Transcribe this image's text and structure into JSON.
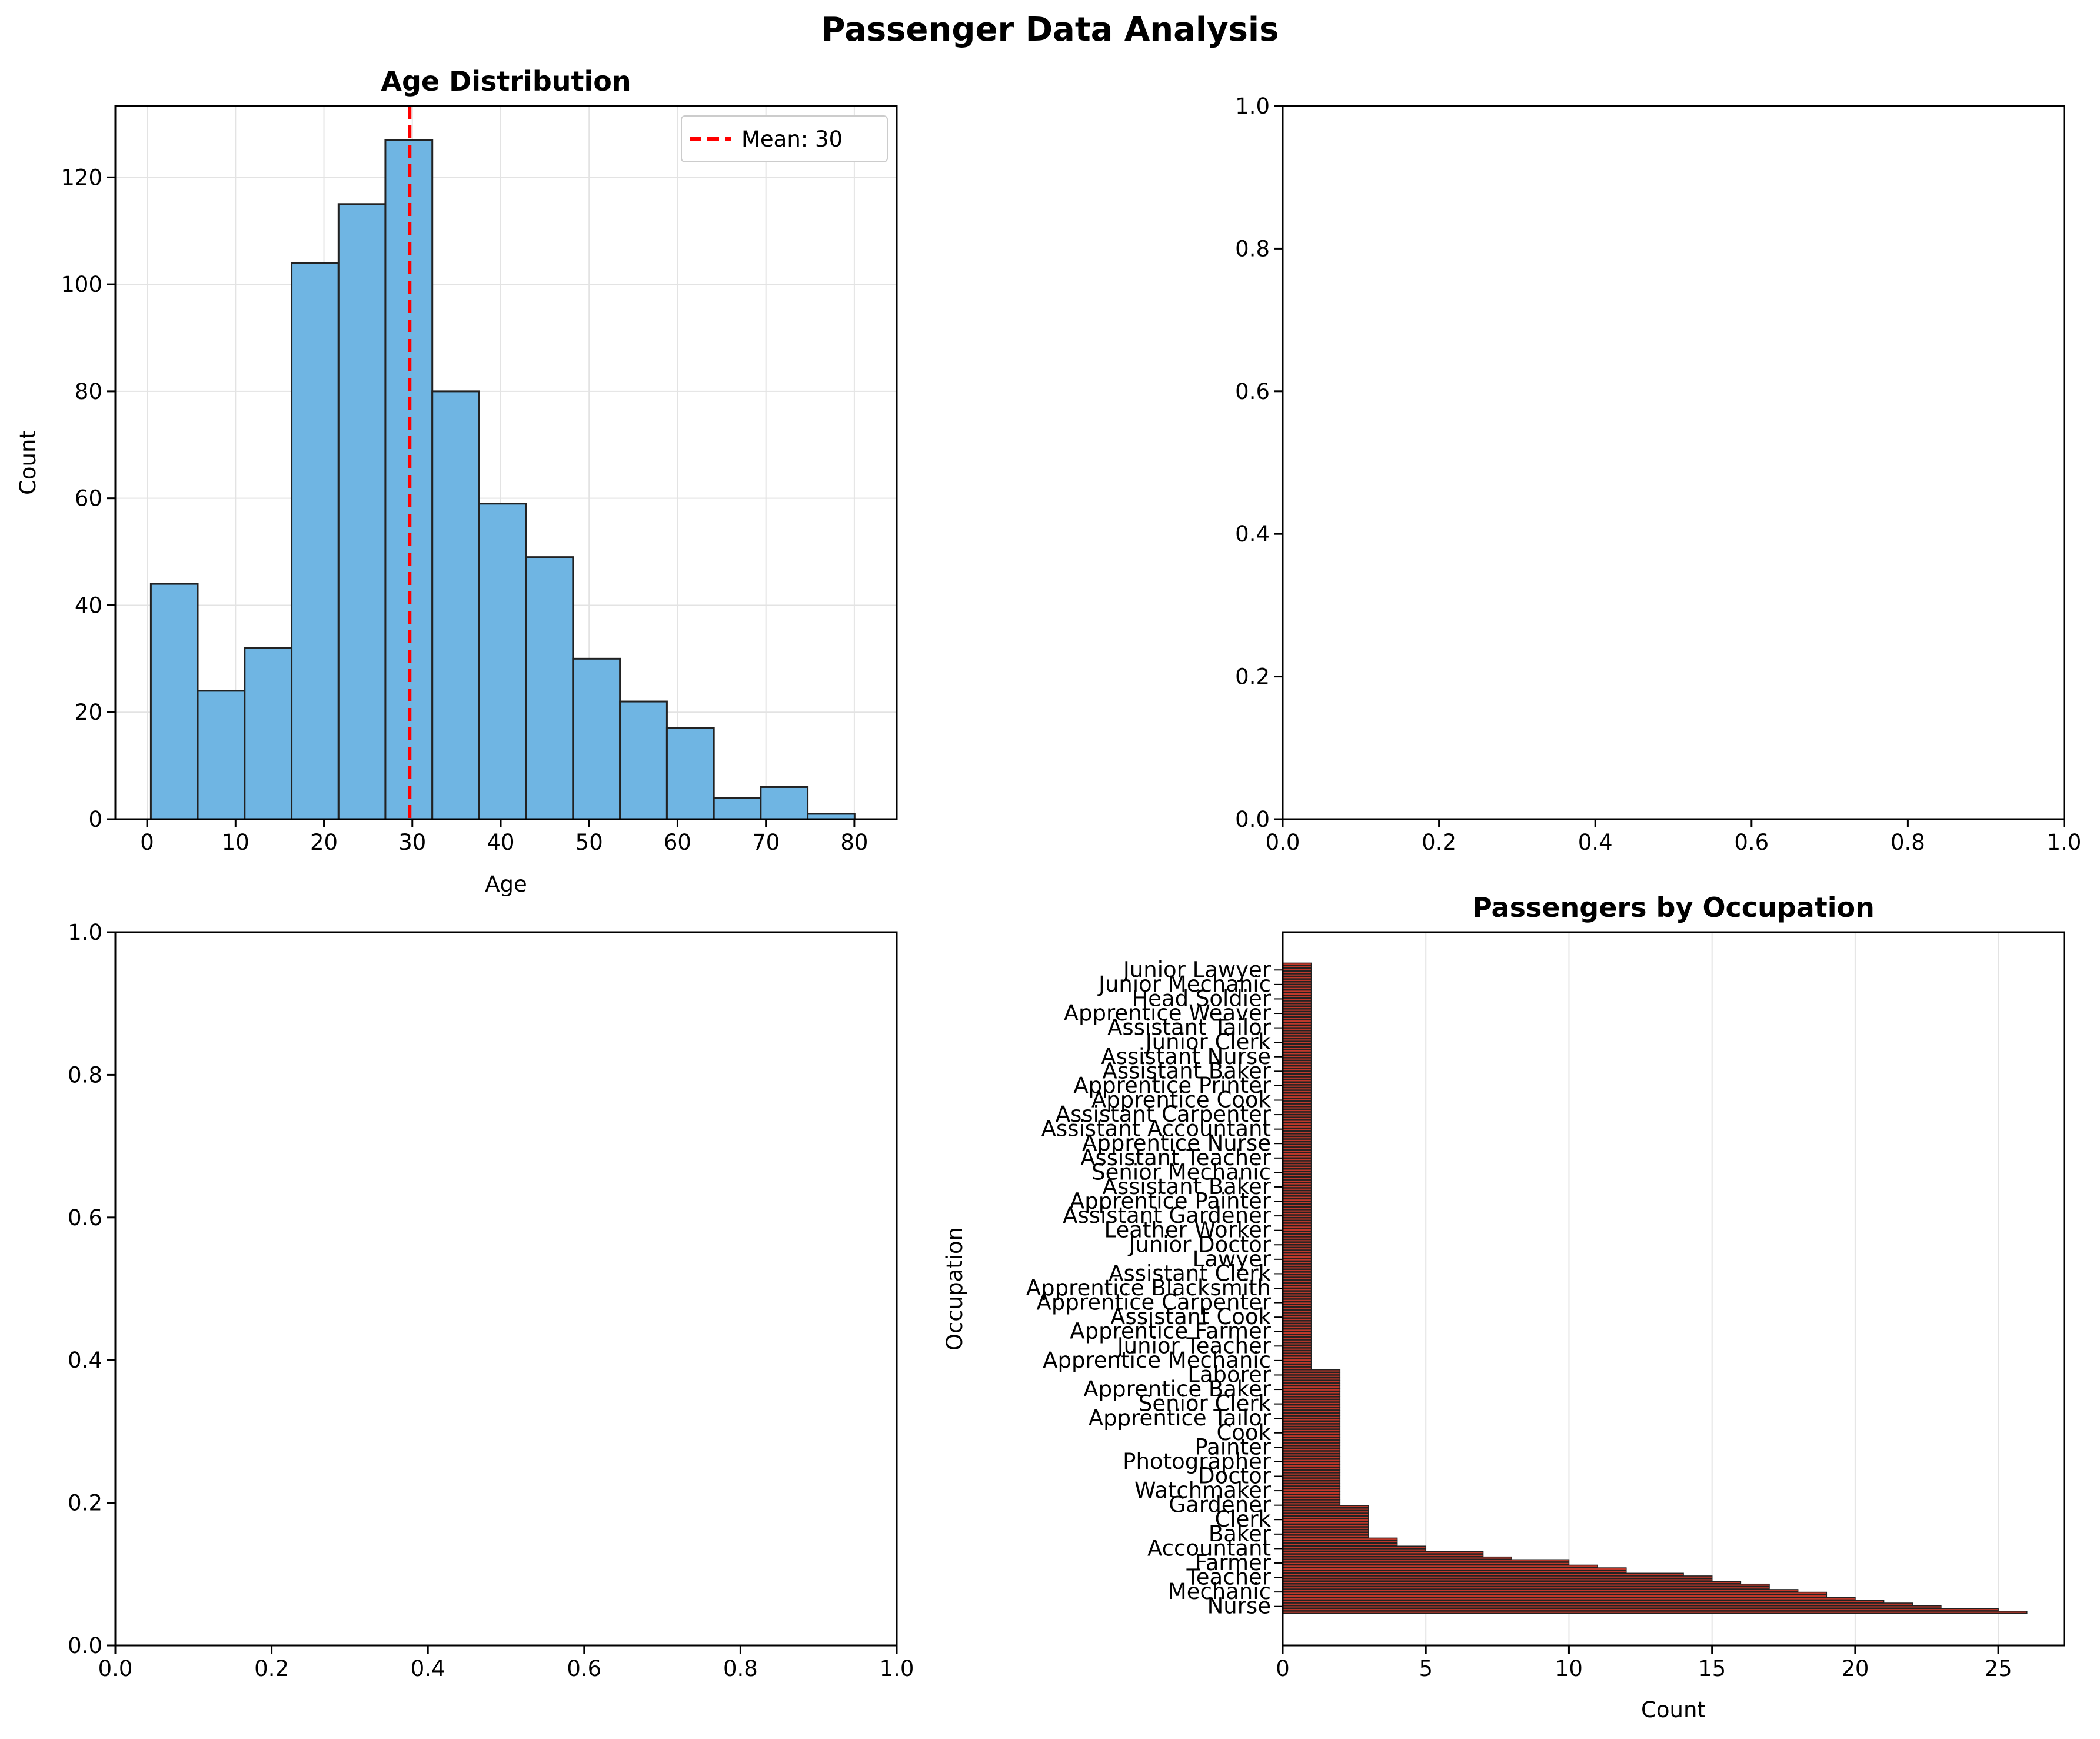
{
  "figure": {
    "title": "Passenger Data Analysis"
  },
  "chart_data": [
    {
      "type": "bar",
      "subtype": "histogram",
      "title": "Age Distribution",
      "xlabel": "Age",
      "ylabel": "Count",
      "xlim": [
        -3.6,
        84.8
      ],
      "ylim": [
        0,
        133.35
      ],
      "xticks": [
        0,
        10,
        20,
        30,
        40,
        50,
        60,
        70,
        80
      ],
      "yticks": [
        0,
        20,
        40,
        60,
        80,
        100,
        120
      ],
      "bin_edges": [
        0.42,
        5.72,
        11.03,
        16.34,
        21.65,
        26.95,
        32.26,
        37.57,
        42.88,
        48.18,
        53.49,
        58.8,
        64.11,
        69.41,
        74.72,
        80.03
      ],
      "values": [
        44,
        24,
        32,
        104,
        115,
        127,
        80,
        59,
        49,
        30,
        22,
        17,
        4,
        6,
        1
      ],
      "mean": 29.7,
      "mean_label": "Mean: 30",
      "legend_position": "top-right",
      "grid": true,
      "colors": {
        "bar": "#6fb5e3",
        "edge": "#222222",
        "mean_line": "#ff0000"
      }
    },
    {
      "type": "empty",
      "xlim": [
        0,
        1
      ],
      "ylim": [
        0,
        1
      ],
      "xticks": [
        "0.0",
        "0.2",
        "0.4",
        "0.6",
        "0.8",
        "1.0"
      ],
      "yticks": [
        "0.0",
        "0.2",
        "0.4",
        "0.6",
        "0.8",
        "1.0"
      ]
    },
    {
      "type": "empty",
      "xlim": [
        0,
        1
      ],
      "ylim": [
        0,
        1
      ],
      "xticks": [
        "0.0",
        "0.2",
        "0.4",
        "0.6",
        "0.8",
        "1.0"
      ],
      "yticks": [
        "0.0",
        "0.2",
        "0.4",
        "0.6",
        "0.8",
        "1.0"
      ]
    },
    {
      "type": "bar",
      "orientation": "horizontal",
      "title": "Passengers by Occupation",
      "xlabel": "Count",
      "ylabel": "Occupation",
      "xlim": [
        0,
        27.3
      ],
      "xticks": [
        0,
        5,
        10,
        15,
        20,
        25
      ],
      "grid": true,
      "colors": {
        "bar": "#c0392b",
        "edge": "#222222"
      },
      "value_counts": [
        {
          "value": 26,
          "count": 1
        },
        {
          "value": 25,
          "count": 1
        },
        {
          "value": 23,
          "count": 1
        },
        {
          "value": 22,
          "count": 1
        },
        {
          "value": 21,
          "count": 1
        },
        {
          "value": 20,
          "count": 1
        },
        {
          "value": 19,
          "count": 2
        },
        {
          "value": 18,
          "count": 1
        },
        {
          "value": 17,
          "count": 2
        },
        {
          "value": 16,
          "count": 1
        },
        {
          "value": 15,
          "count": 2
        },
        {
          "value": 14,
          "count": 1
        },
        {
          "value": 12,
          "count": 2
        },
        {
          "value": 11,
          "count": 1
        },
        {
          "value": 10,
          "count": 2
        },
        {
          "value": 8,
          "count": 1
        },
        {
          "value": 7,
          "count": 2
        },
        {
          "value": 5,
          "count": 2
        },
        {
          "value": 4,
          "count": 3
        },
        {
          "value": 3,
          "count": 12
        },
        {
          "value": 2,
          "count": 50
        },
        {
          "value": 1,
          "count": 150
        }
      ],
      "visible_labels": [
        "Nurse",
        "Mechanic",
        "Teacher",
        "Farmer",
        "Accountant",
        "Baker",
        "Clerk",
        "Gardener",
        "Watchmaker",
        "Doctor",
        "Photographer",
        "Painter",
        "Cook",
        "Apprentice Tailor",
        "Senior Clerk",
        "Apprentice Baker",
        "Laborer",
        "Apprentice Mechanic",
        "Junior Teacher",
        "Apprentice Farmer",
        "Assistant Cook",
        "Apprentice Carpenter",
        "Apprentice Blacksmith",
        "Assistant Clerk",
        "Lawyer",
        "Junior Doctor",
        "Leather Worker",
        "Assistant Gardener",
        "Apprentice Painter",
        "Assistant Baker",
        "Senior Mechanic",
        "Assistant Teacher",
        "Apprentice Nurse",
        "Assistant Accountant",
        "Assistant Carpenter",
        "Apprentice Cook",
        "Apprentice Printer",
        "Assistant Baker",
        "Assistant Nurse",
        "Junior Clerk",
        "Assistant Tailor",
        "Apprentice Weaver",
        "Head Soldier",
        "Junior Mechanic",
        "Junior Lawyer"
      ]
    }
  ]
}
